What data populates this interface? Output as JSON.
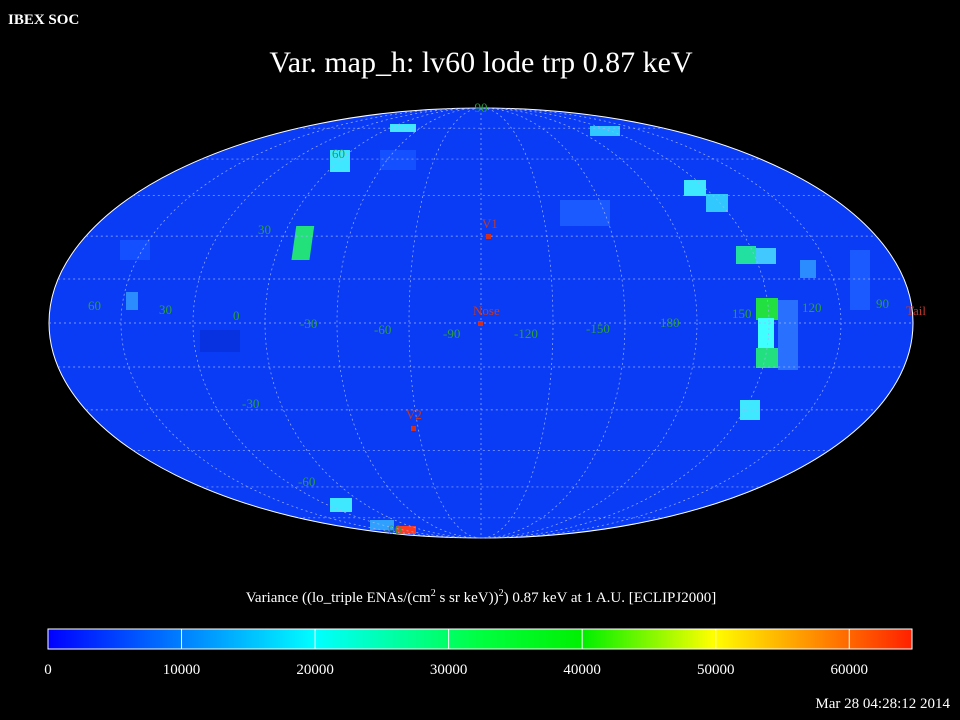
{
  "header": {
    "source": "IBEX SOC",
    "title": "Var. map_h: lv60 lode trp 0.87 keV",
    "timestamp": "Mar 28 04:28:12 2014"
  },
  "map": {
    "latitude_labels": [
      "90",
      "60",
      "30",
      "-30",
      "-60",
      "-90"
    ],
    "longitude_labels": [
      "60",
      "30",
      "0",
      "-30",
      "-60",
      "-90",
      "-120",
      "-150",
      "180",
      "150",
      "120",
      "90"
    ],
    "markers": [
      "V1",
      "Nose",
      "V2",
      "Tail"
    ]
  },
  "colorbar": {
    "label_parts": [
      "Variance ((lo_triple ENAs/(cm",
      "2",
      " s sr keV))",
      "2",
      ") 0.87 keV at 1 A.U. [ECLIPJ2000]"
    ],
    "range": [
      0,
      64700
    ],
    "ticks": [
      0,
      10000,
      20000,
      30000,
      40000,
      50000,
      60000
    ]
  }
}
